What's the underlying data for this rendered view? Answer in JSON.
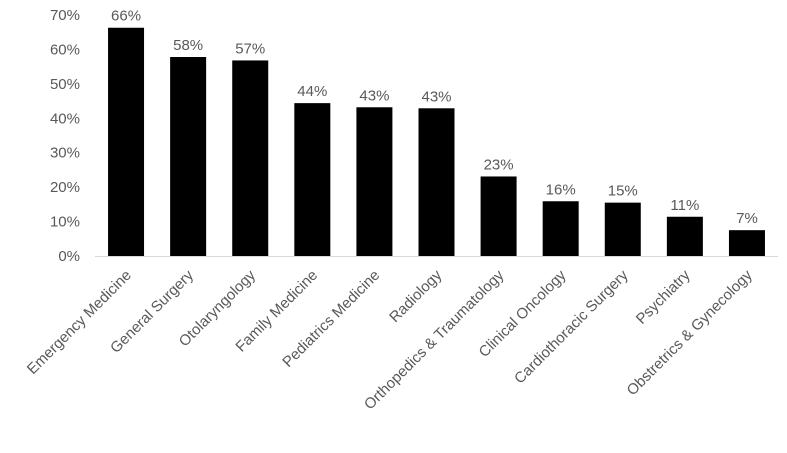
{
  "chart_data": {
    "type": "bar",
    "title": "",
    "xlabel": "",
    "ylabel": "",
    "categories": [
      "Emergency Medicine",
      "General Surgery",
      "Otolaryngology",
      "Family Medicine",
      "Pediatrics Medicine",
      "Radiology",
      "Orthopedics & Traumatology",
      "Clinical Oncology",
      "Cardiothoracic Surgery",
      "Psychiatry",
      "Obstretrics & Gynecology"
    ],
    "values": [
      66.3,
      57.8,
      56.8,
      44.4,
      43.2,
      42.9,
      23.1,
      15.9,
      15.5,
      11.4,
      7.5
    ],
    "data_labels": [
      "66%",
      "58%",
      "57%",
      "44%",
      "43%",
      "43%",
      "23%",
      "16%",
      "15%",
      "11%",
      "7%"
    ],
    "ylim": [
      0,
      70
    ],
    "yticks": [
      0,
      10,
      20,
      30,
      40,
      50,
      60,
      70
    ],
    "ytick_labels": [
      "0%",
      "10%",
      "20%",
      "30%",
      "40%",
      "50%",
      "60%",
      "70%"
    ],
    "grid": false,
    "legend": "none",
    "bar_color": "#000000",
    "axis_color": "#d9d9d9",
    "text_color": "#595959"
  }
}
